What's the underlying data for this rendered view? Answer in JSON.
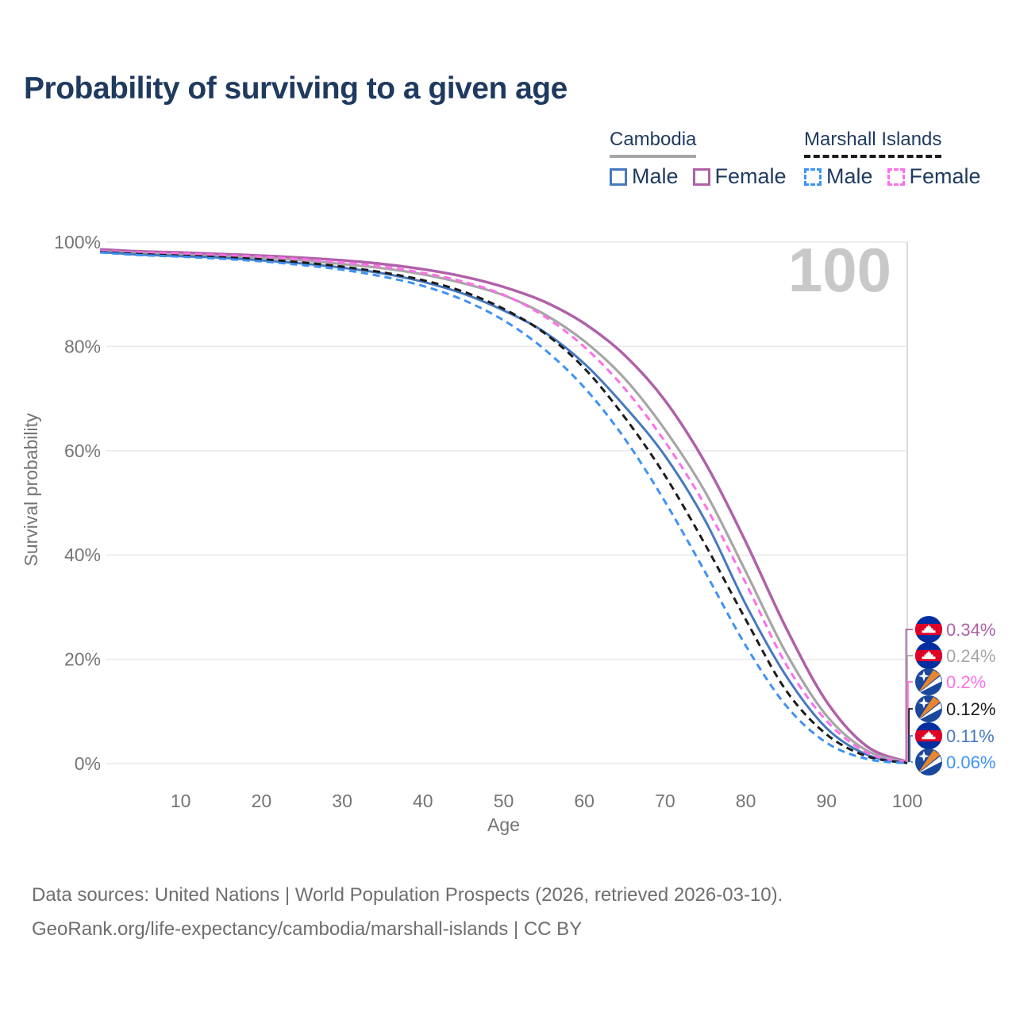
{
  "page_title": "Probability of surviving to a given age",
  "legend": {
    "groups": [
      {
        "label": "Cambodia",
        "line_style": "solid",
        "line_color": "#a6a6a6",
        "items": [
          {
            "label": "Male",
            "color": "#4679c0",
            "style": "solid"
          },
          {
            "label": "Female",
            "color": "#b061a8",
            "style": "solid"
          }
        ]
      },
      {
        "label": "Marshall Islands",
        "line_style": "dashed",
        "line_color": "#1c1c1c",
        "items": [
          {
            "label": "Male",
            "color": "#3f92f5",
            "style": "dashed"
          },
          {
            "label": "Female",
            "color": "#ff6ee9",
            "style": "dashed"
          }
        ]
      }
    ]
  },
  "watermark": "100",
  "chart_data": {
    "type": "line",
    "title": "Probability of surviving to a given age",
    "xlabel": "Age",
    "ylabel": "Survival probability",
    "xlim": [
      0,
      100
    ],
    "ylim": [
      0,
      100
    ],
    "grid": "horizontal",
    "x_ticks": [
      10,
      20,
      30,
      40,
      50,
      60,
      70,
      80,
      90,
      100
    ],
    "y_ticks": [
      {
        "value": 100,
        "label": "100%"
      },
      {
        "value": 80,
        "label": "80%"
      },
      {
        "value": 60,
        "label": "60%"
      },
      {
        "value": 40,
        "label": "40%"
      },
      {
        "value": 20,
        "label": "20%"
      },
      {
        "value": 0,
        "label": "0%"
      }
    ],
    "ages": [
      0,
      5,
      10,
      15,
      20,
      25,
      30,
      35,
      40,
      45,
      50,
      55,
      60,
      65,
      70,
      75,
      80,
      85,
      90,
      95,
      100
    ],
    "series": [
      {
        "id": "cambodia-female",
        "name": "Cambodia Female",
        "country": "Cambodia",
        "sex": "Female",
        "color": "#b061a8",
        "dash": "solid",
        "width": 3.5,
        "flag": "cambodia",
        "end_label": "0.34%",
        "values": [
          98.6,
          98.2,
          98.0,
          97.7,
          97.4,
          97.0,
          96.5,
          95.8,
          94.8,
          93.4,
          91.4,
          88.6,
          84.4,
          78.3,
          69.6,
          57.6,
          42.5,
          26.0,
          11.9,
          3.3,
          0.34
        ]
      },
      {
        "id": "cambodia-both",
        "name": "Cambodia",
        "country": "Cambodia",
        "sex": "Both",
        "color": "#a6a6a6",
        "dash": "solid",
        "width": 3.2,
        "flag": "cambodia",
        "end_label": "0.24%",
        "values": [
          98.2,
          97.9,
          97.6,
          97.3,
          97.0,
          96.5,
          95.8,
          95.0,
          93.8,
          92.1,
          89.8,
          86.2,
          81.0,
          73.8,
          64.0,
          52.0,
          36.8,
          21.2,
          9.2,
          2.5,
          0.24
        ]
      },
      {
        "id": "marshall-islands-female",
        "name": "Marshall Islands Female",
        "country": "Marshall Islands",
        "sex": "Female",
        "color": "#ff6ee9",
        "dash": "dashed",
        "width": 3,
        "flag": "marshall-islands",
        "end_label": "0.2%",
        "values": [
          98.3,
          98.0,
          97.8,
          97.5,
          97.2,
          96.7,
          96.1,
          95.3,
          94.1,
          92.4,
          89.9,
          85.8,
          79.9,
          71.9,
          61.7,
          49.4,
          34.6,
          19.0,
          8.2,
          2.1,
          0.2
        ]
      },
      {
        "id": "marshall-islands-both",
        "name": "Marshall Islands",
        "country": "Marshall Islands",
        "sex": "Both",
        "color": "#1c1c1c",
        "dash": "dashed",
        "width": 3,
        "flag": "marshall-islands",
        "end_label": "0.12%",
        "values": [
          98.1,
          97.7,
          97.4,
          97.1,
          96.7,
          96.1,
          95.3,
          94.2,
          92.7,
          90.5,
          87.2,
          82.6,
          75.8,
          66.4,
          55.2,
          41.9,
          27.6,
          14.0,
          5.6,
          1.4,
          0.12
        ]
      },
      {
        "id": "cambodia-male",
        "name": "Cambodia Male",
        "country": "Cambodia",
        "sex": "Male",
        "color": "#4679c0",
        "dash": "solid",
        "width": 3,
        "flag": "cambodia",
        "end_label": "0.11%",
        "values": [
          98.1,
          97.6,
          97.3,
          97.0,
          96.5,
          95.9,
          95.1,
          94.0,
          92.4,
          90.1,
          86.9,
          82.8,
          76.7,
          68.5,
          59.0,
          46.5,
          30.5,
          16.8,
          6.8,
          1.7,
          0.11
        ]
      },
      {
        "id": "marshall-islands-male",
        "name": "Marshall Islands Male",
        "country": "Marshall Islands",
        "sex": "Male",
        "color": "#3f92f5",
        "dash": "dashed",
        "width": 3,
        "flag": "marshall-islands",
        "end_label": "0.06%",
        "values": [
          98.0,
          97.5,
          97.2,
          96.8,
          96.3,
          95.6,
          94.7,
          93.4,
          91.6,
          88.9,
          85.0,
          79.5,
          72.1,
          62.3,
          50.2,
          36.6,
          22.6,
          11.1,
          4.0,
          0.9,
          0.06
        ]
      }
    ]
  },
  "colors": {
    "title": "#1f3a5f",
    "axis_text": "#757575",
    "grid": "#e9e9e9",
    "age_indicator": "#dcdcdc",
    "watermark": "#c8c8c8",
    "flag_cambodia_blue": "#032ea1",
    "flag_cambodia_red": "#e00025",
    "flag_marshall_blue": "#1b479c",
    "flag_marshall_orange": "#e8862b"
  },
  "footer": {
    "line1": "Data sources: United Nations | World Population Prospects (2026, retrieved 2026-03-10).",
    "line2": "GeoRank.org/life-expectancy/cambodia/marshall-islands | CC BY"
  }
}
